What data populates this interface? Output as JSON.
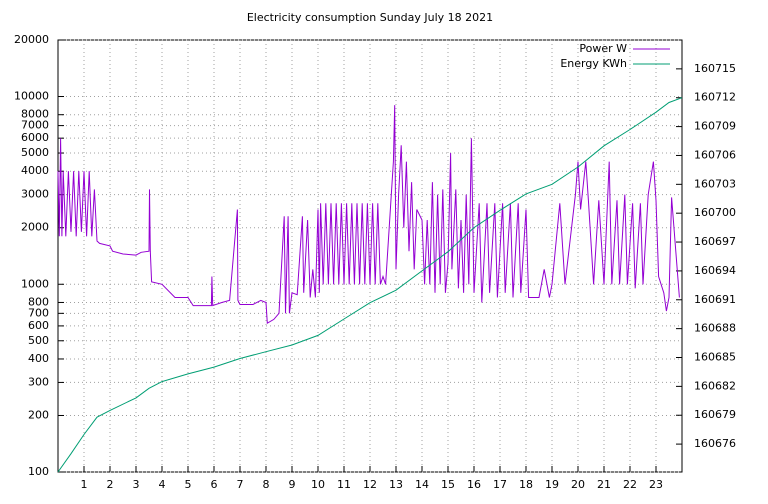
{
  "chart_data": {
    "type": "line",
    "title": "Electricity consumption Sunday July 18 2021",
    "xlim": [
      0,
      24
    ],
    "xticks": [
      1,
      2,
      3,
      4,
      5,
      6,
      7,
      8,
      9,
      10,
      11,
      12,
      13,
      14,
      15,
      16,
      17,
      18,
      19,
      20,
      21,
      22,
      23
    ],
    "ylim": [
      100,
      20000
    ],
    "yscale": "log",
    "yticks": [
      100,
      200,
      300,
      400,
      500,
      600,
      700,
      800,
      1000,
      2000,
      3000,
      4000,
      5000,
      6000,
      7000,
      8000,
      10000,
      20000
    ],
    "y2lim": [
      160673.1,
      160718.0
    ],
    "y2ticks": [
      160676,
      160679,
      160682,
      160685,
      160688,
      160691,
      160694,
      160697,
      160700,
      160703,
      160706,
      160709,
      160712,
      160715
    ],
    "grid": true,
    "legend": "top-right",
    "series": [
      {
        "name": "Power W",
        "color": "#9400d3",
        "x": [
          0.0,
          0.05,
          0.1,
          0.15,
          0.2,
          0.3,
          0.4,
          0.5,
          0.6,
          0.7,
          0.8,
          0.9,
          1.0,
          1.1,
          1.2,
          1.3,
          1.4,
          1.5,
          1.6,
          2.0,
          2.1,
          2.5,
          3.0,
          3.2,
          3.5,
          3.52,
          3.55,
          3.6,
          4.0,
          4.5,
          5.0,
          5.2,
          5.9,
          5.92,
          5.95,
          6.3,
          6.6,
          6.9,
          6.92,
          7.0,
          7.5,
          7.8,
          8.0,
          8.05,
          8.3,
          8.5,
          8.7,
          8.75,
          8.85,
          8.9,
          9.0,
          9.2,
          9.4,
          9.45,
          9.6,
          9.7,
          9.8,
          9.9,
          10.0,
          10.05,
          10.1,
          10.2,
          10.3,
          10.4,
          10.5,
          10.6,
          10.7,
          10.8,
          10.9,
          11.0,
          11.1,
          11.2,
          11.3,
          11.4,
          11.5,
          11.6,
          11.7,
          11.8,
          11.9,
          12.0,
          12.1,
          12.2,
          12.3,
          12.4,
          12.5,
          12.6,
          12.9,
          12.95,
          13.0,
          13.1,
          13.2,
          13.3,
          13.4,
          13.5,
          13.6,
          13.7,
          13.8,
          14.0,
          14.1,
          14.2,
          14.3,
          14.4,
          14.5,
          14.6,
          14.7,
          14.8,
          14.9,
          15.0,
          15.1,
          15.15,
          15.3,
          15.4,
          15.5,
          15.6,
          15.7,
          15.8,
          15.9,
          16.0,
          16.2,
          16.3,
          16.5,
          16.6,
          16.8,
          16.9,
          17.1,
          17.2,
          17.4,
          17.5,
          17.7,
          17.8,
          18.0,
          18.1,
          18.5,
          18.7,
          18.9,
          19.0,
          19.3,
          19.5,
          19.9,
          20.0,
          20.1,
          20.3,
          20.4,
          20.6,
          20.8,
          21.0,
          21.2,
          21.3,
          21.5,
          21.6,
          21.8,
          21.9,
          22.1,
          22.2,
          22.4,
          22.5,
          22.7,
          22.9,
          23.0,
          23.1,
          23.3,
          23.4,
          23.5,
          23.6,
          23.9
        ],
        "values": [
          4000,
          1800,
          6000,
          1800,
          4000,
          1800,
          4000,
          1900,
          4000,
          1800,
          4000,
          1900,
          4000,
          1800,
          4000,
          1800,
          3200,
          1700,
          1650,
          1600,
          1500,
          1450,
          1430,
          1480,
          1500,
          3200,
          1500,
          1030,
          1000,
          850,
          850,
          770,
          770,
          1100,
          770,
          800,
          820,
          2500,
          820,
          780,
          780,
          820,
          800,
          620,
          650,
          700,
          2300,
          700,
          2300,
          700,
          900,
          880,
          2300,
          900,
          2200,
          850,
          1200,
          850,
          2500,
          900,
          2700,
          1000,
          2700,
          1000,
          2700,
          1000,
          2700,
          1000,
          2700,
          1000,
          2700,
          1000,
          2700,
          1000,
          2700,
          1000,
          2700,
          1000,
          2700,
          1000,
          2700,
          1000,
          2700,
          1000,
          1100,
          1000,
          4500,
          9000,
          1200,
          3000,
          5500,
          2000,
          4500,
          1500,
          3500,
          1200,
          2500,
          2200,
          1000,
          2200,
          1000,
          3500,
          900,
          3000,
          1000,
          3200,
          900,
          1300,
          5000,
          1200,
          3200,
          950,
          2200,
          900,
          3000,
          1000,
          6000,
          900,
          2700,
          800,
          2700,
          900,
          2700,
          850,
          2700,
          900,
          2700,
          850,
          2700,
          900,
          2500,
          850,
          850,
          1200,
          850,
          1000,
          2700,
          1000,
          3000,
          4500,
          2500,
          4500,
          2800,
          1000,
          2800,
          1000,
          4500,
          1000,
          2800,
          1000,
          3000,
          1000,
          2700,
          950,
          2700,
          1000,
          3000,
          4500,
          2800,
          1100,
          900,
          720,
          850,
          2900,
          850
        ]
      },
      {
        "name": "Energy KWh",
        "color": "#009e73",
        "axis": "y2",
        "x": [
          0,
          0.5,
          1,
          1.5,
          2,
          3,
          3.5,
          4,
          5,
          6,
          7,
          8,
          9,
          10,
          11,
          12,
          13,
          14,
          15,
          16,
          17,
          18,
          19,
          20,
          21,
          22,
          23,
          23.5,
          24
        ],
        "values": [
          160673.1,
          160675,
          160677,
          160678.8,
          160679.5,
          160680.8,
          160681.8,
          160682.5,
          160683.3,
          160684,
          160684.9,
          160685.6,
          160686.3,
          160687.3,
          160689,
          160690.7,
          160692,
          160694,
          160696,
          160698.5,
          160700.3,
          160702,
          160703,
          160704.8,
          160707,
          160708.7,
          160710.5,
          160711.5,
          160712
        ]
      }
    ]
  }
}
